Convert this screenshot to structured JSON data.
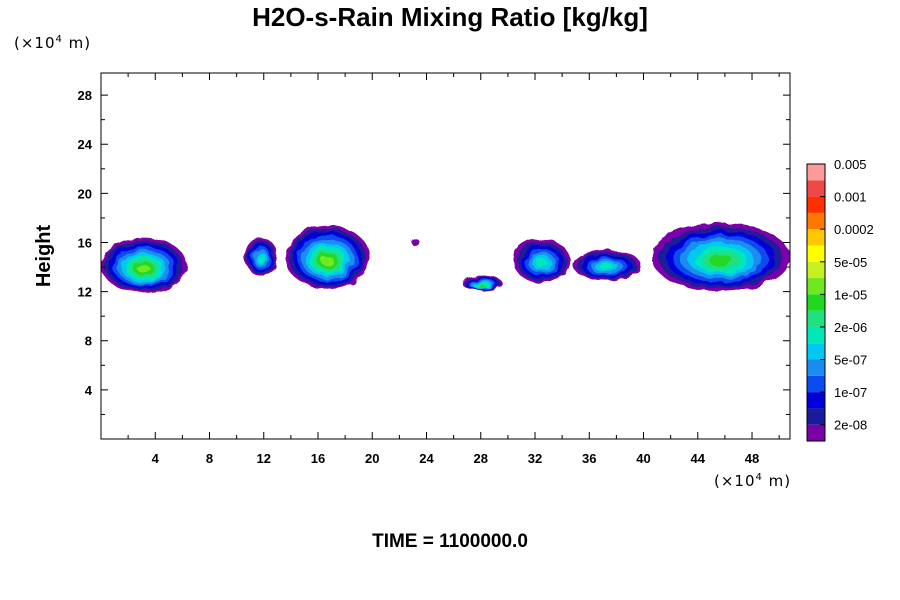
{
  "chart_data": {
    "type": "heatmap",
    "title": "H2O-s-Rain Mixing Ratio [kg/kg]",
    "ylabel": "Height",
    "xlabel": "",
    "x_unit": {
      "prefix": "(×10",
      "exp": "4",
      "suffix": " m)"
    },
    "y_unit": {
      "prefix": "(×10",
      "exp": "4",
      "suffix": " m)"
    },
    "xlim": [
      0,
      50.8
    ],
    "ylim": [
      0,
      29.8
    ],
    "x_ticks": [
      4,
      8,
      12,
      16,
      20,
      24,
      28,
      32,
      36,
      40,
      44,
      48
    ],
    "y_ticks": [
      4,
      8,
      12,
      16,
      20,
      24,
      28
    ],
    "grid": false,
    "colorbar": {
      "placement": "right",
      "colors": [
        "#7a00a8",
        "#1a1a9c",
        "#0000d8",
        "#0a4cf0",
        "#1a8cf0",
        "#00c8f0",
        "#00e8b8",
        "#20e080",
        "#20d820",
        "#70e820",
        "#c8f020",
        "#ffff00",
        "#ffc800",
        "#ff7800",
        "#ff3000",
        "#f04848",
        "#ff9a9a"
      ],
      "labels": [
        "2e-08",
        "1e-07",
        "5e-07",
        "2e-06",
        "1e-05",
        "5e-05",
        "0.0002",
        "0.001",
        "0.005"
      ]
    },
    "cloud_regions": [
      {
        "x0": 0.0,
        "x1": 6.3,
        "y_top": 16.4,
        "y_bottom": 11.9,
        "peak_level": 9
      },
      {
        "x0": 10.6,
        "x1": 13.0,
        "y_top": 16.4,
        "y_bottom": 13.3,
        "peak_level": 6
      },
      {
        "x0": 13.6,
        "x1": 19.8,
        "y_top": 17.4,
        "y_bottom": 12.2,
        "peak_level": 9
      },
      {
        "x0": 22.8,
        "x1": 23.4,
        "y_top": 16.4,
        "y_bottom": 15.8,
        "peak_level": 0
      },
      {
        "x0": 26.6,
        "x1": 29.6,
        "y_top": 13.3,
        "y_bottom": 12.1,
        "peak_level": 8
      },
      {
        "x0": 30.4,
        "x1": 34.6,
        "y_top": 16.3,
        "y_bottom": 12.7,
        "peak_level": 6
      },
      {
        "x0": 34.8,
        "x1": 39.8,
        "y_top": 15.4,
        "y_bottom": 12.9,
        "peak_level": 6
      },
      {
        "x0": 40.6,
        "x1": 50.8,
        "y_top": 17.6,
        "y_bottom": 12.0,
        "peak_level": 8
      }
    ]
  },
  "footer": {
    "time_label": "TIME = 1100000.0"
  }
}
